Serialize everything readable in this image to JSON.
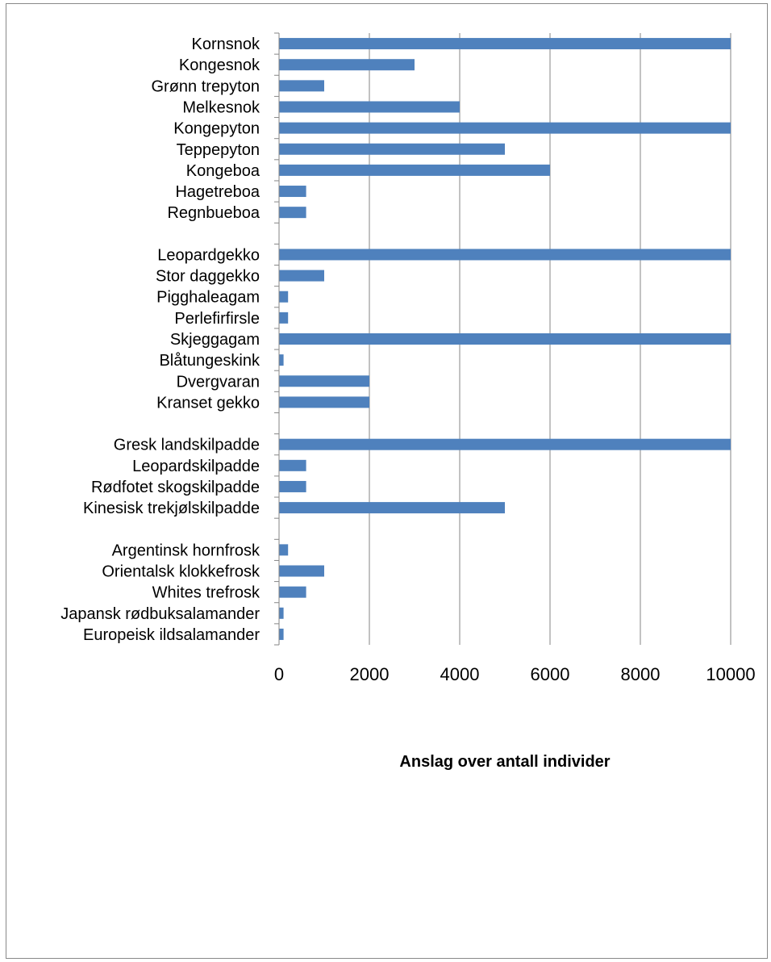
{
  "chart_data": {
    "type": "bar",
    "orientation": "horizontal",
    "title": "",
    "xlabel": "Anslag over antall individer",
    "ylabel": "",
    "xlim": [
      0,
      10000
    ],
    "xticks": [
      0,
      2000,
      4000,
      6000,
      8000,
      10000
    ],
    "grid": true,
    "bar_color": "#4F81BD",
    "grid_color": "#868686",
    "categories": [
      "Kornsnok",
      "Kongesnok",
      "Grønn trepyton",
      "Melkesnok",
      "Kongepyton",
      "Teppepyton",
      "Kongeboa",
      "Hagetreboa",
      "Regnbueboa",
      "",
      "Leopardgekko",
      "Stor daggekko",
      "Pigghaleagam",
      "Perlefirfirsle",
      "Skjeggagam",
      "Blåtungeskink",
      "Dvergvaran",
      "Kranset gekko",
      "",
      "Gresk landskilpadde",
      "Leopardskilpadde",
      "Rødfotet skogskilpadde",
      "Kinesisk trekjølskilpadde",
      "",
      "Argentinsk hornfrosk",
      "Orientalsk klokkefrosk",
      "Whites trefrosk",
      "Japansk rødbuksalamander",
      "Europeisk ildsalamander"
    ],
    "values": [
      10000,
      3000,
      1000,
      4000,
      10000,
      5000,
      6000,
      600,
      600,
      null,
      10000,
      1000,
      200,
      200,
      10000,
      100,
      2000,
      2000,
      null,
      10000,
      600,
      600,
      5000,
      null,
      200,
      1000,
      600,
      100,
      100
    ]
  }
}
